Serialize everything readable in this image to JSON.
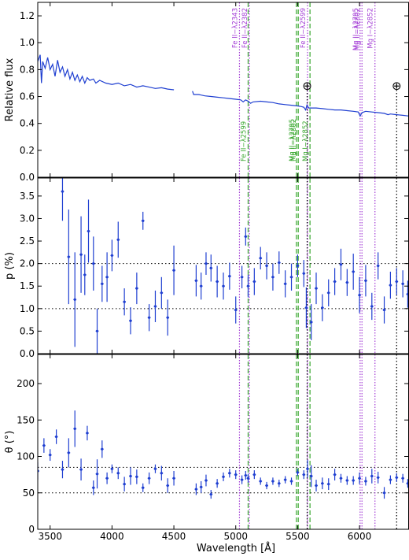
{
  "colors": {
    "data": "#1f3fd1",
    "fe_mg_ii": "#a43fd6",
    "intervening": "#3aa830",
    "telluric": "#000000",
    "frame": "#000000"
  },
  "chart_data": {
    "type": "line",
    "shared_x": {
      "xlabel": "Wavelength [Å]",
      "xlim": [
        3400,
        6400
      ],
      "ticks": [
        3500,
        4000,
        4500,
        5000,
        5500,
        6000
      ],
      "tick_labels": [
        "3500",
        "4000",
        "4500",
        "5000",
        "5500",
        "6000"
      ]
    },
    "panels": [
      {
        "id": "flux",
        "ylabel": "Relative flux",
        "ylim": [
          0,
          1.3
        ],
        "yticks": [
          0.0,
          0.2,
          0.4,
          0.6,
          0.8,
          1.0,
          1.2
        ],
        "ytick_labels": [
          "0.0",
          "0.2",
          "0.4",
          "0.6",
          "0.8",
          "1.0",
          "1.2"
        ],
        "spectrum": [
          [
            [
              3400,
              0.86
            ],
            [
              3420,
              0.91
            ],
            [
              3430,
              0.7
            ],
            [
              3440,
              0.86
            ],
            [
              3460,
              0.81
            ],
            [
              3480,
              0.89
            ],
            [
              3500,
              0.8
            ],
            [
              3520,
              0.84
            ],
            [
              3540,
              0.75
            ],
            [
              3560,
              0.87
            ],
            [
              3580,
              0.78
            ],
            [
              3600,
              0.82
            ],
            [
              3620,
              0.75
            ],
            [
              3640,
              0.8
            ],
            [
              3660,
              0.73
            ],
            [
              3680,
              0.78
            ],
            [
              3700,
              0.72
            ],
            [
              3720,
              0.76
            ],
            [
              3740,
              0.71
            ],
            [
              3760,
              0.75
            ],
            [
              3780,
              0.7
            ],
            [
              3800,
              0.74
            ],
            [
              3820,
              0.72
            ],
            [
              3850,
              0.73
            ],
            [
              3870,
              0.7
            ],
            [
              3900,
              0.72
            ],
            [
              3950,
              0.7
            ],
            [
              4000,
              0.69
            ],
            [
              4050,
              0.7
            ],
            [
              4100,
              0.68
            ],
            [
              4150,
              0.69
            ],
            [
              4200,
              0.67
            ],
            [
              4250,
              0.68
            ],
            [
              4300,
              0.67
            ],
            [
              4350,
              0.66
            ],
            [
              4400,
              0.665
            ],
            [
              4450,
              0.655
            ],
            [
              4500,
              0.65
            ]
          ],
          [
            [
              4650,
              0.64
            ],
            [
              4660,
              0.615
            ],
            [
              4700,
              0.615
            ],
            [
              4750,
              0.605
            ],
            [
              4800,
              0.6
            ],
            [
              4850,
              0.595
            ],
            [
              4900,
              0.59
            ],
            [
              4950,
              0.585
            ],
            [
              5000,
              0.58
            ],
            [
              5040,
              0.575
            ],
            [
              5060,
              0.56
            ],
            [
              5080,
              0.575
            ],
            [
              5100,
              0.565
            ],
            [
              5120,
              0.55
            ],
            [
              5140,
              0.56
            ],
            [
              5200,
              0.565
            ],
            [
              5250,
              0.56
            ],
            [
              5300,
              0.555
            ],
            [
              5350,
              0.545
            ],
            [
              5400,
              0.54
            ],
            [
              5450,
              0.535
            ],
            [
              5500,
              0.53
            ],
            [
              5530,
              0.525
            ],
            [
              5550,
              0.52
            ],
            [
              5565,
              0.5
            ],
            [
              5575,
              0.535
            ],
            [
              5590,
              0.515
            ],
            [
              5650,
              0.515
            ],
            [
              5700,
              0.51
            ],
            [
              5750,
              0.505
            ],
            [
              5800,
              0.5
            ],
            [
              5850,
              0.5
            ],
            [
              5900,
              0.495
            ],
            [
              5950,
              0.49
            ],
            [
              5990,
              0.485
            ],
            [
              6005,
              0.455
            ],
            [
              6020,
              0.48
            ],
            [
              6050,
              0.49
            ],
            [
              6100,
              0.485
            ],
            [
              6150,
              0.48
            ],
            [
              6200,
              0.475
            ],
            [
              6230,
              0.465
            ],
            [
              6250,
              0.47
            ],
            [
              6300,
              0.465
            ],
            [
              6350,
              0.46
            ],
            [
              6400,
              0.455
            ]
          ]
        ],
        "telluric_markers": [
          {
            "x": 5577,
            "y": 0.68,
            "label": "⊕"
          },
          {
            "x": 6300,
            "y": 0.68,
            "label": "⊕"
          }
        ]
      },
      {
        "id": "polarization",
        "ylabel": "p (%)",
        "ylim": [
          0,
          3.9
        ],
        "yticks": [
          0.0,
          0.5,
          1.0,
          1.5,
          2.0,
          2.5,
          3.0,
          3.5
        ],
        "ytick_labels": [
          "0.0",
          "0.5",
          "1.0",
          "1.5",
          "2.0",
          "2.5",
          "3.0",
          "3.5"
        ],
        "hlines": [
          1.0,
          2.0
        ],
        "points": [
          [
            3600,
            3.6,
            0.65
          ],
          [
            3650,
            2.15,
            1.05
          ],
          [
            3700,
            1.2,
            1.05
          ],
          [
            3750,
            2.2,
            0.85
          ],
          [
            3780,
            1.75,
            0.45
          ],
          [
            3810,
            2.72,
            0.7
          ],
          [
            3850,
            2.0,
            0.6
          ],
          [
            3880,
            0.5,
            0.5
          ],
          [
            3920,
            1.55,
            0.4
          ],
          [
            3960,
            1.7,
            0.55
          ],
          [
            4000,
            2.18,
            0.35
          ],
          [
            4050,
            2.53,
            0.4
          ],
          [
            4100,
            1.15,
            0.3
          ],
          [
            4150,
            0.73,
            0.3
          ],
          [
            4200,
            1.45,
            0.35
          ],
          [
            4250,
            2.95,
            0.2
          ],
          [
            4300,
            0.8,
            0.3
          ],
          [
            4350,
            1.05,
            0.35
          ],
          [
            4400,
            1.35,
            0.35
          ],
          [
            4450,
            0.8,
            0.4
          ],
          [
            4500,
            1.85,
            0.55
          ],
          [
            4680,
            1.62,
            0.35
          ],
          [
            4720,
            1.5,
            0.3
          ],
          [
            4760,
            2.0,
            0.25
          ],
          [
            4800,
            1.9,
            0.3
          ],
          [
            4850,
            1.6,
            0.35
          ],
          [
            4900,
            1.5,
            0.3
          ],
          [
            4950,
            1.72,
            0.3
          ],
          [
            5000,
            0.97,
            0.3
          ],
          [
            5050,
            1.7,
            0.25
          ],
          [
            5080,
            2.6,
            0.2
          ],
          [
            5100,
            1.5,
            0.25
          ],
          [
            5150,
            1.6,
            0.3
          ],
          [
            5200,
            2.12,
            0.25
          ],
          [
            5250,
            1.95,
            0.3
          ],
          [
            5300,
            1.7,
            0.3
          ],
          [
            5350,
            2.02,
            0.25
          ],
          [
            5400,
            1.55,
            0.3
          ],
          [
            5450,
            1.7,
            0.3
          ],
          [
            5500,
            1.95,
            0.25
          ],
          [
            5550,
            1.78,
            0.3
          ],
          [
            5570,
            1.02,
            0.45
          ],
          [
            5610,
            0.7,
            0.4
          ],
          [
            5650,
            1.45,
            0.35
          ],
          [
            5700,
            1.02,
            0.3
          ],
          [
            5750,
            1.35,
            0.3
          ],
          [
            5800,
            1.6,
            0.3
          ],
          [
            5850,
            1.98,
            0.35
          ],
          [
            5900,
            1.58,
            0.3
          ],
          [
            5950,
            1.82,
            0.4
          ],
          [
            6000,
            1.3,
            0.4
          ],
          [
            6050,
            1.62,
            0.35
          ],
          [
            6100,
            1.05,
            0.3
          ],
          [
            6150,
            1.95,
            0.3
          ],
          [
            6200,
            0.97,
            0.3
          ],
          [
            6250,
            1.52,
            0.3
          ],
          [
            6300,
            1.6,
            0.3
          ],
          [
            6350,
            1.55,
            0.3
          ],
          [
            6390,
            1.32,
            0.3
          ]
        ]
      },
      {
        "id": "angle",
        "ylabel": "θ (°)",
        "ylim": [
          0,
          240
        ],
        "yticks": [
          0,
          50,
          100,
          150,
          200
        ],
        "ytick_labels": [
          "0",
          "50",
          "100",
          "150",
          "200"
        ],
        "hlines": [
          50,
          85
        ],
        "points": [
          [
            3400,
            80,
            12
          ],
          [
            3450,
            115,
            10
          ],
          [
            3500,
            102,
            8
          ],
          [
            3550,
            127,
            10
          ],
          [
            3600,
            82,
            12
          ],
          [
            3650,
            105,
            20
          ],
          [
            3700,
            138,
            25
          ],
          [
            3750,
            82,
            15
          ],
          [
            3800,
            132,
            10
          ],
          [
            3850,
            57,
            10
          ],
          [
            3880,
            76,
            20
          ],
          [
            3920,
            110,
            12
          ],
          [
            3960,
            70,
            8
          ],
          [
            4000,
            83,
            6
          ],
          [
            4050,
            77,
            8
          ],
          [
            4100,
            62,
            10
          ],
          [
            4150,
            73,
            12
          ],
          [
            4200,
            72,
            10
          ],
          [
            4250,
            57,
            6
          ],
          [
            4300,
            70,
            8
          ],
          [
            4350,
            83,
            6
          ],
          [
            4400,
            77,
            10
          ],
          [
            4450,
            60,
            10
          ],
          [
            4500,
            70,
            10
          ],
          [
            4680,
            55,
            8
          ],
          [
            4720,
            58,
            8
          ],
          [
            4760,
            67,
            8
          ],
          [
            4800,
            48,
            6
          ],
          [
            4850,
            63,
            6
          ],
          [
            4900,
            72,
            6
          ],
          [
            4950,
            77,
            6
          ],
          [
            5000,
            75,
            6
          ],
          [
            5050,
            68,
            6
          ],
          [
            5080,
            74,
            6
          ],
          [
            5100,
            70,
            6
          ],
          [
            5150,
            75,
            6
          ],
          [
            5200,
            66,
            5
          ],
          [
            5250,
            60,
            5
          ],
          [
            5300,
            66,
            5
          ],
          [
            5350,
            63,
            5
          ],
          [
            5400,
            68,
            5
          ],
          [
            5450,
            66,
            5
          ],
          [
            5500,
            78,
            5
          ],
          [
            5550,
            75,
            6
          ],
          [
            5580,
            83,
            12
          ],
          [
            5610,
            73,
            15
          ],
          [
            5650,
            60,
            8
          ],
          [
            5700,
            63,
            8
          ],
          [
            5750,
            62,
            8
          ],
          [
            5800,
            75,
            8
          ],
          [
            5850,
            70,
            6
          ],
          [
            5900,
            67,
            6
          ],
          [
            5950,
            67,
            6
          ],
          [
            6000,
            70,
            8
          ],
          [
            6050,
            66,
            6
          ],
          [
            6100,
            73,
            10
          ],
          [
            6150,
            71,
            8
          ],
          [
            6200,
            50,
            8
          ],
          [
            6250,
            68,
            6
          ],
          [
            6300,
            71,
            6
          ],
          [
            6350,
            70,
            6
          ],
          [
            6390,
            63,
            6
          ]
        ]
      }
    ],
    "absorption_lines": {
      "fe_mg_ii": [
        {
          "x": 5030,
          "label": "Fe II−λ2343"
        },
        {
          "x": 5110,
          "label": "Fe II−λ2382"
        },
        {
          "x": 5580,
          "label": "Fe II−λ2599"
        },
        {
          "x": 6005,
          "label": "Mg II−λ2795"
        },
        {
          "x": 6020,
          "label": "Mg II−λ2802"
        },
        {
          "x": 6125,
          "label": "Mg I−λ2852"
        }
      ],
      "intervening": [
        {
          "x": 5100,
          "label": "Fe II−λ2599"
        },
        {
          "x": 5490,
          "label": "Mg II−λ2795"
        },
        {
          "x": 5505,
          "label": "Mg II−λ2802"
        },
        {
          "x": 5600,
          "label": "Mg I−λ2852"
        }
      ],
      "telluric": [
        5577,
        6300
      ]
    }
  }
}
